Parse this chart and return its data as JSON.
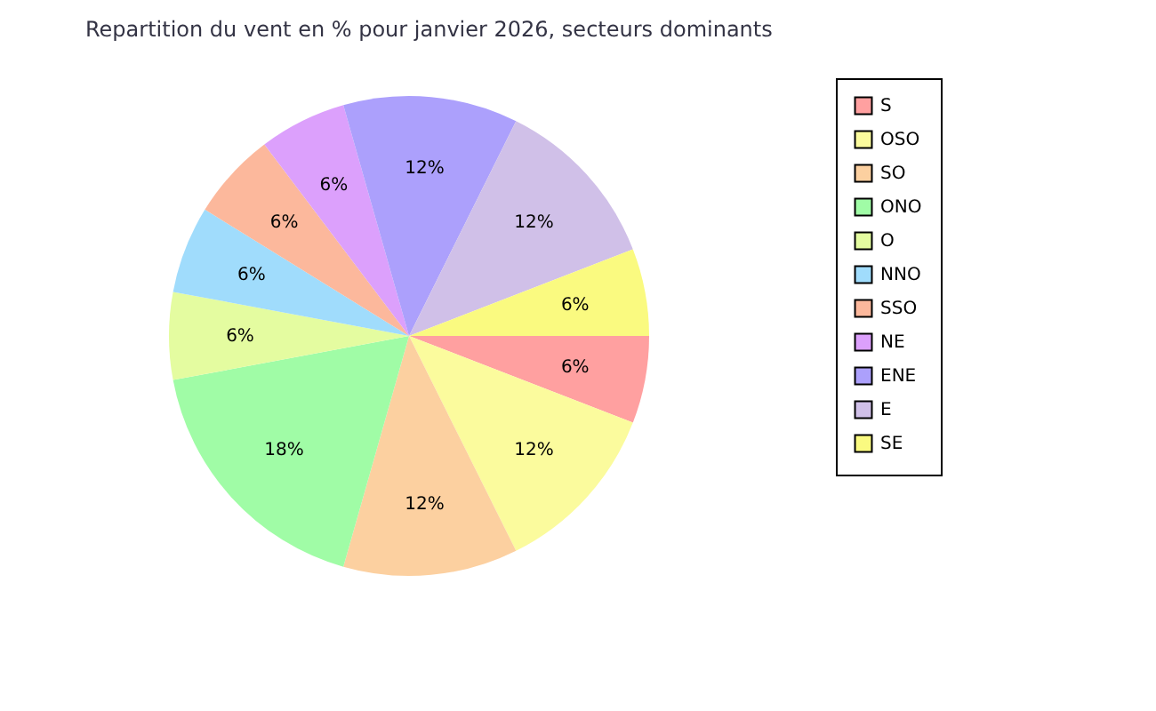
{
  "chart_data": {
    "type": "pie",
    "title": "Repartition du vent en % pour janvier 2026, secteurs dominants",
    "categories": [
      "S",
      "OSO",
      "SO",
      "ONO",
      "O",
      "NNO",
      "SSO",
      "NE",
      "ENE",
      "E",
      "SE"
    ],
    "values": [
      6,
      12,
      12,
      18,
      6,
      6,
      6,
      6,
      12,
      12,
      6
    ],
    "value_labels": [
      "6%",
      "12%",
      "12%",
      "18%",
      "6%",
      "6%",
      "6%",
      "6%",
      "12%",
      "12%",
      "6%"
    ],
    "colors": [
      "#ffa0a0",
      "#fbfb9d",
      "#fcd0a0",
      "#a0fca6",
      "#e4fca0",
      "#a0dcfc",
      "#fcb89c",
      "#dca0fc",
      "#aca0fc",
      "#d0c0e8",
      "#fafa80"
    ],
    "legend": "right"
  }
}
